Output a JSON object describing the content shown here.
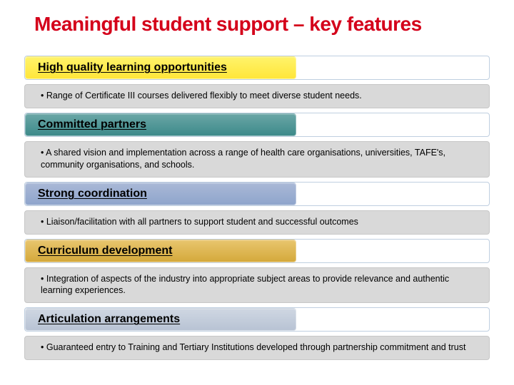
{
  "title": "Meaningful student support – key features",
  "pill_width": 380,
  "pill_colors": {
    "yellow": "linear-gradient(#fff36a, #ffe63a)",
    "teal": "linear-gradient(#6aa6a6, #3d8a8a)",
    "blue": "linear-gradient(#a9b8d6, #8fa5cc)",
    "gold": "linear-gradient(#e8c56d, #d4a93c)",
    "grey": "linear-gradient(#cfd7e2, #b8c3d4)"
  },
  "sections": [
    {
      "color_key": "yellow",
      "heading": "High quality learning opportunities",
      "body": "Range of Certificate III courses delivered flexibly to meet diverse student needs."
    },
    {
      "color_key": "teal",
      "heading": "Committed partners",
      "body": "A shared vision and implementation across a range of health care organisations, universities, TAFE's, community organisations, and schools."
    },
    {
      "color_key": "blue",
      "heading": "Strong coordination",
      "body": "Liaison/facilitation with all partners to support student and successful outcomes"
    },
    {
      "color_key": "gold",
      "heading": "Curriculum development",
      "body": "Integration of aspects of the industry into appropriate subject areas to provide relevance and authentic learning experiences."
    },
    {
      "color_key": "grey",
      "heading": "Articulation arrangements",
      "body": "Guaranteed entry to Training and Tertiary Institutions developed through partnership commitment and trust"
    }
  ]
}
